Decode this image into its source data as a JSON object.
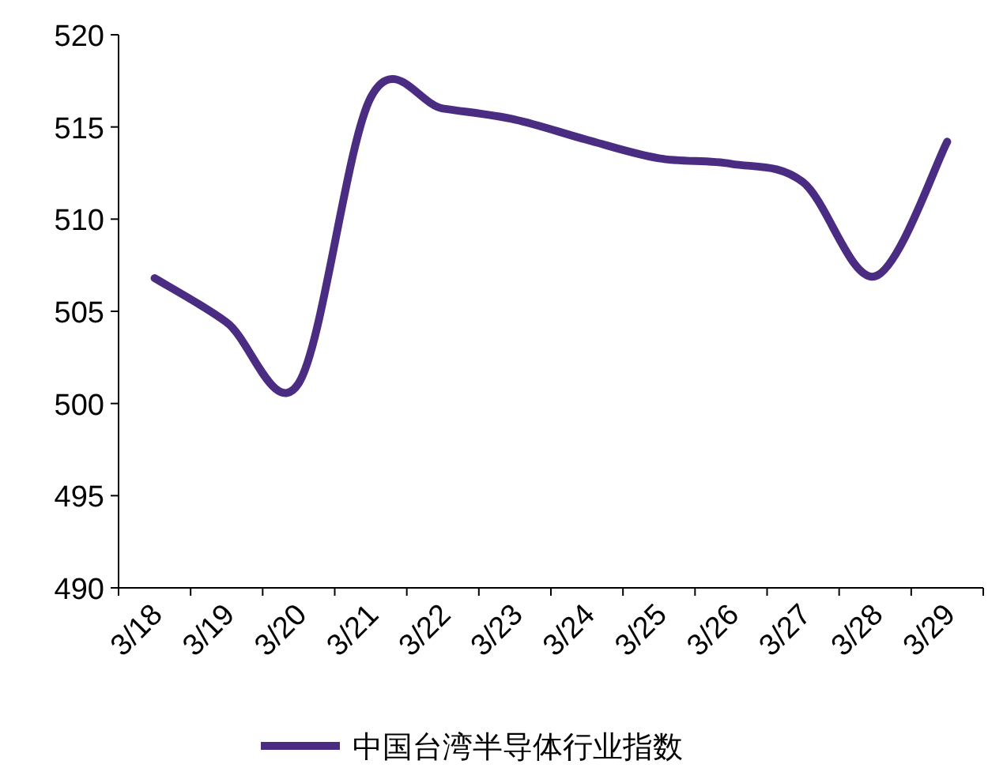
{
  "chart_data": {
    "type": "line",
    "categories": [
      "3/18",
      "3/19",
      "3/20",
      "3/21",
      "3/22",
      "3/23",
      "3/24",
      "3/25",
      "3/26",
      "3/27",
      "3/28",
      "3/29"
    ],
    "series": [
      {
        "name": "中国台湾半导体行业指数",
        "color": "#4b2c83",
        "values": [
          506.8,
          504.4,
          501.1,
          516.6,
          516.0,
          515.4,
          514.3,
          513.3,
          513.0,
          512.0,
          506.9,
          514.2
        ]
      }
    ],
    "ylim": [
      490,
      520
    ],
    "yticks": [
      490,
      495,
      500,
      505,
      510,
      515,
      520
    ],
    "grid": false,
    "legend": "bottom",
    "marker": "none",
    "line_style": "solid"
  }
}
